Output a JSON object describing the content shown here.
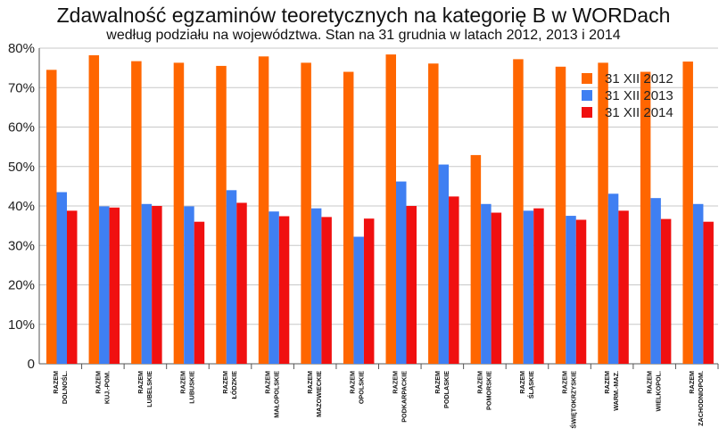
{
  "title": "Zdawalność egzaminów teoretycznych na kategorię B w WORDach",
  "subtitle": "według podziału na województwa. Stan na 31 grudnia w latach 2012, 2013 i 2014",
  "colors": {
    "s2012": "#ff6600",
    "s2013": "#3f7ff2",
    "s2014": "#f01010",
    "grid": "#c8c8c8",
    "axis": "#555555"
  },
  "chart_data": {
    "type": "bar",
    "ylim": [
      0,
      80
    ],
    "yticks": [
      {
        "v": 0,
        "label": "0"
      },
      {
        "v": 10,
        "label": "10%"
      },
      {
        "v": 20,
        "label": "20%"
      },
      {
        "v": 30,
        "label": "30%"
      },
      {
        "v": 40,
        "label": "40%"
      },
      {
        "v": 50,
        "label": "50%"
      },
      {
        "v": 60,
        "label": "60%"
      },
      {
        "v": 70,
        "label": "70%"
      },
      {
        "v": 80,
        "label": "80%"
      }
    ],
    "grid": true,
    "legend_position": "top-right",
    "categories": [
      [
        "RAZEM",
        "DOLNOŚL."
      ],
      [
        "RAZEM",
        "KUJ.-POM."
      ],
      [
        "RAZEM",
        "LUBELSKIE"
      ],
      [
        "RAZEM",
        "LUBUSKIE"
      ],
      [
        "RAZEM",
        "ŁÓDZKIE"
      ],
      [
        "RAZEM",
        "MAŁOPOLSKIE"
      ],
      [
        "RAZEM",
        "MAZOWIECKIE"
      ],
      [
        "RAZEM",
        "OPOLSKIE"
      ],
      [
        "RAZEM",
        "PODKARPACKIE"
      ],
      [
        "RAZEM",
        "PODLASKIE"
      ],
      [
        "RAZEM",
        "POMORSKIE"
      ],
      [
        "RAZEM",
        "ŚLĄSKIE"
      ],
      [
        "RAZEM",
        "ŚWIĘTOKRZYSKIE"
      ],
      [
        "RAZEM",
        "WARM.-MAZ."
      ],
      [
        "RAZEM",
        "WIELKOPOL."
      ],
      [
        "RAZEM",
        "ZACHODNIOPOM."
      ]
    ],
    "series": [
      {
        "name": "31 XII 2012",
        "values": [
          74.5,
          78.2,
          76.7,
          76.3,
          75.5,
          77.9,
          76.3,
          74.0,
          78.4,
          76.1,
          52.9,
          77.2,
          75.3,
          76.3,
          74.0,
          76.6
        ]
      },
      {
        "name": "31 XII 2013",
        "values": [
          43.5,
          39.9,
          40.5,
          39.9,
          44.0,
          38.6,
          39.4,
          32.2,
          46.2,
          50.5,
          40.5,
          38.8,
          37.5,
          43.1,
          42.0,
          40.5
        ]
      },
      {
        "name": "31 XII 2014",
        "values": [
          38.8,
          39.6,
          40.0,
          36.0,
          40.8,
          37.4,
          37.2,
          36.8,
          40.0,
          42.4,
          38.3,
          39.4,
          36.5,
          38.8,
          36.7,
          36.0
        ]
      }
    ]
  }
}
